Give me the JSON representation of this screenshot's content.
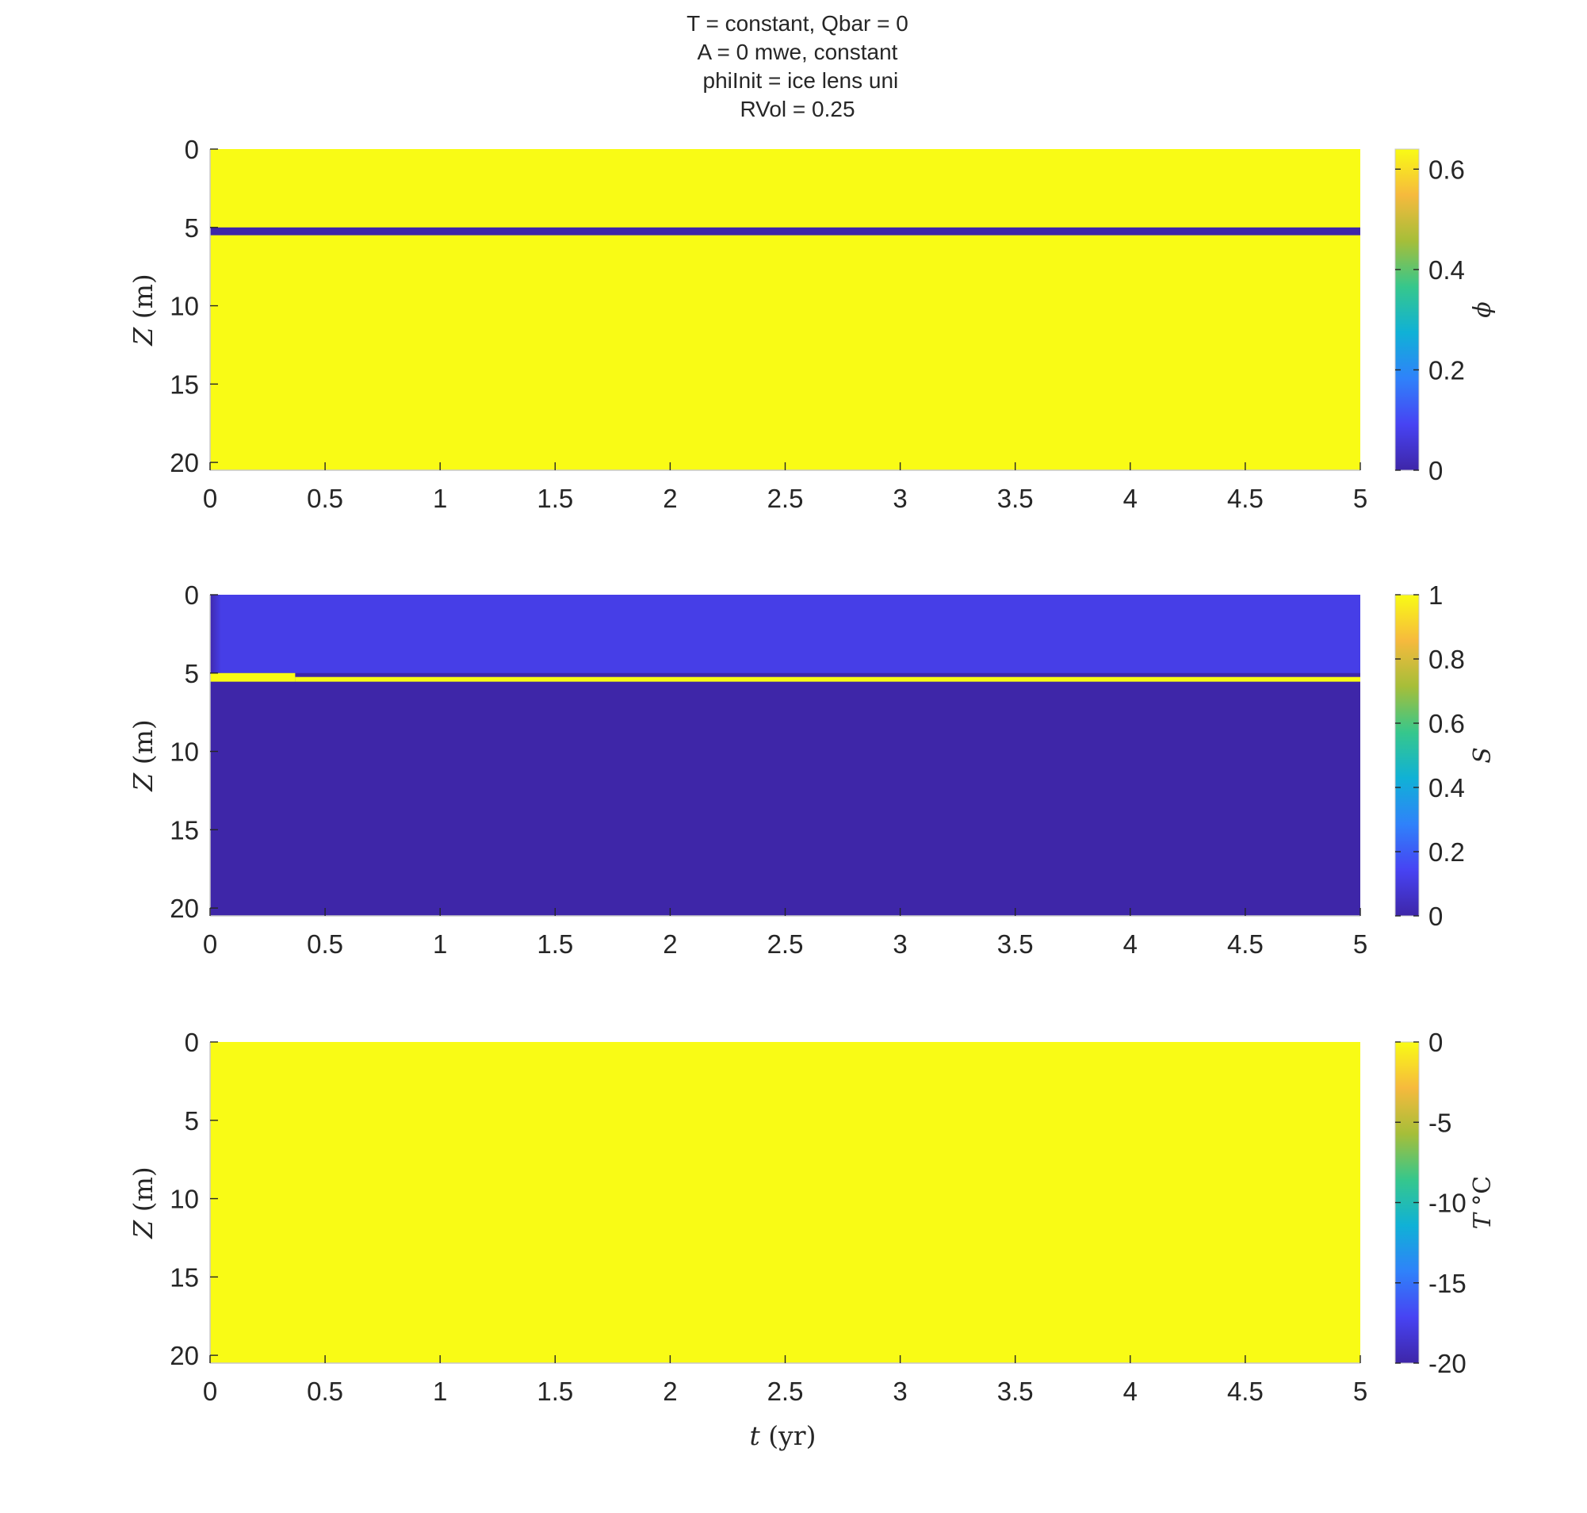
{
  "figure_title": [
    "T = constant, Qbar = 0",
    "A = 0 mwe, constant",
    " phiInit = ice lens uni",
    "RVol = 0.25"
  ],
  "colors": {
    "parula_stops": [
      "#3E26A8",
      "#4743F3",
      "#2F82FA",
      "#10B1D6",
      "#36C78C",
      "#A6BE39",
      "#F6BA3D",
      "#F9FB15"
    ],
    "axis": "#262626"
  },
  "chart_data": [
    {
      "type": "heatmap",
      "title": "",
      "xlabel": "",
      "ylabel": "Z (m)",
      "xlim": [
        0,
        5
      ],
      "ylim": [
        0,
        20.5
      ],
      "y_reversed": true,
      "xticks": [
        "0",
        "0.5",
        "1",
        "1.5",
        "2",
        "2.5",
        "3",
        "3.5",
        "4",
        "4.5",
        "5"
      ],
      "yticks": [
        "0",
        "5",
        "10",
        "15",
        "20"
      ],
      "colorbar": {
        "label": "ϕ",
        "range": [
          0,
          0.64
        ],
        "ticks": [
          "0",
          "0.2",
          "0.4",
          "0.6"
        ]
      },
      "background_value": 0.64,
      "regions": [
        {
          "t_start": 0,
          "t_end": 5,
          "z_top": 5.0,
          "z_bottom": 5.5,
          "value": 0
        }
      ]
    },
    {
      "type": "heatmap",
      "title": "",
      "xlabel": "",
      "ylabel": "Z (m)",
      "xlim": [
        0,
        5
      ],
      "ylim": [
        0,
        20.5
      ],
      "y_reversed": true,
      "xticks": [
        "0",
        "0.5",
        "1",
        "1.5",
        "2",
        "2.5",
        "3",
        "3.5",
        "4",
        "4.5",
        "5"
      ],
      "yticks": [
        "0",
        "5",
        "10",
        "15",
        "20"
      ],
      "colorbar": {
        "label": "S",
        "range": [
          0,
          1
        ],
        "ticks": [
          "0",
          "0.2",
          "0.4",
          "0.6",
          "0.8",
          "1"
        ]
      },
      "background_value": 0,
      "regions": [
        {
          "t_start": 0,
          "t_end": 5,
          "z_top": 0,
          "z_bottom": 5.0,
          "value": 0.12
        },
        {
          "t_start": 0,
          "t_end": 0.37,
          "z_top": 5.0,
          "z_bottom": 5.55,
          "value": 1
        },
        {
          "t_start": 0.37,
          "t_end": 5,
          "z_top": 5.25,
          "z_bottom": 5.55,
          "value": 1
        }
      ]
    },
    {
      "type": "heatmap",
      "title": "",
      "xlabel": "t (yr)",
      "ylabel": "Z (m)",
      "xlim": [
        0,
        5
      ],
      "ylim": [
        0,
        20.5
      ],
      "y_reversed": true,
      "xticks": [
        "0",
        "0.5",
        "1",
        "1.5",
        "2",
        "2.5",
        "3",
        "3.5",
        "4",
        "4.5",
        "5"
      ],
      "yticks": [
        "0",
        "5",
        "10",
        "15",
        "20"
      ],
      "colorbar": {
        "label": "T °C",
        "range": [
          -20,
          0
        ],
        "ticks": [
          "-20",
          "-15",
          "-10",
          "-5",
          "0"
        ]
      },
      "background_value": 0,
      "regions": []
    }
  ]
}
